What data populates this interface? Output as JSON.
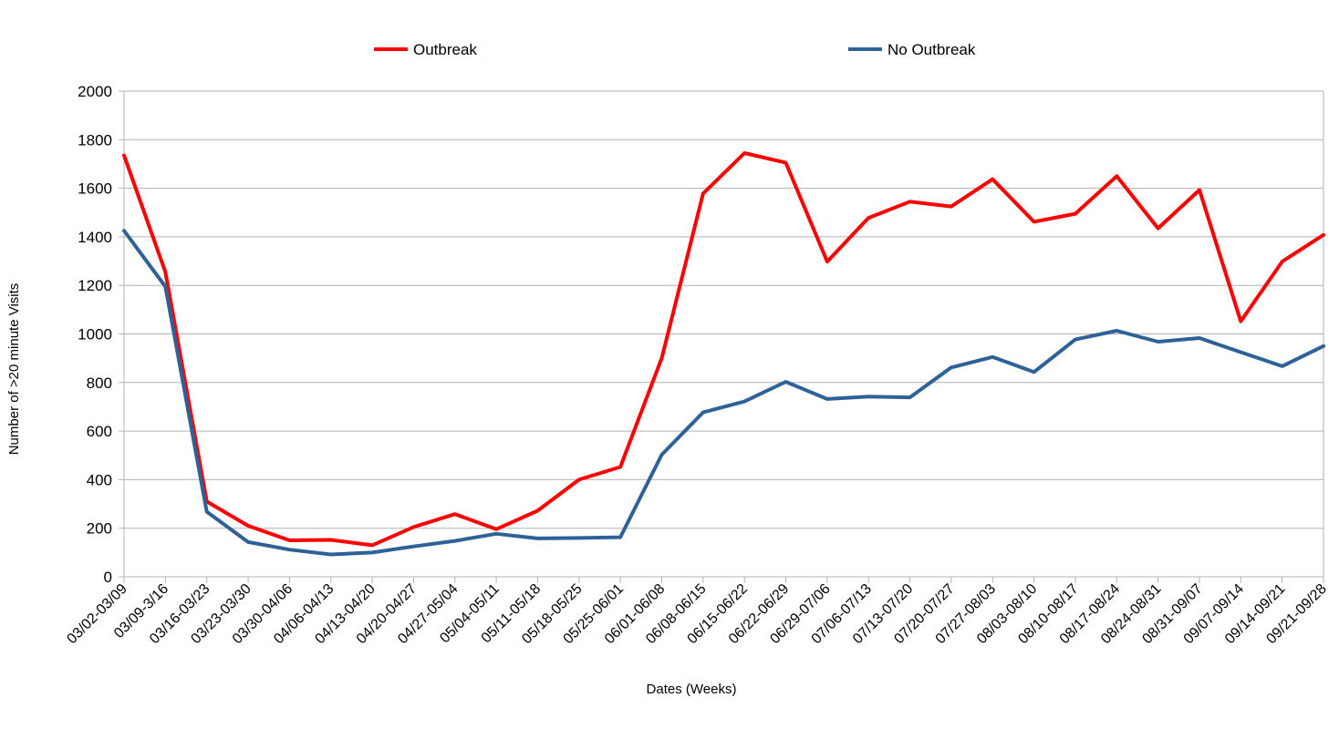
{
  "chart_data": {
    "type": "line",
    "xlabel": "Dates (Weeks)",
    "ylabel": "Number of >20 minute Visits",
    "ylim": [
      0,
      2000
    ],
    "yticks": [
      0,
      200,
      400,
      600,
      800,
      1000,
      1200,
      1400,
      1600,
      1800,
      2000
    ],
    "grid": "horizontal",
    "legend": "top",
    "categories": [
      "03/02-03/09",
      "03/09-3/16",
      "03/16-03/23",
      "03/23-03/30",
      "03/30-04/06",
      "04/06-04/13",
      "04/13-04/20",
      "04/20-04/27",
      "04/27-05/04",
      "05/04-05/11",
      "05/11-05/18",
      "05/18-05/25",
      "05/25-06/01",
      "06/01-06/08",
      "06/08-06/15",
      "06/15-06/22",
      "06/22-06/29",
      "06/29-07/06",
      "07/06-07/13",
      "07/13-07/20",
      "07/20-07/27",
      "07/27-08/03",
      "08/03-08/10",
      "08/10-08/17",
      "08/17-08/24",
      "08/24-08/31",
      "08/31-09/07",
      "09/07-09/14",
      "09/14-09/21",
      "09/21-09/28"
    ],
    "series": [
      {
        "name": "Outbreak",
        "color": "#ff0000",
        "values": [
          1735,
          1255,
          310,
          210,
          150,
          152,
          130,
          205,
          258,
          196,
          272,
          400,
          452,
          900,
          1578,
          1745,
          1705,
          1298,
          1478,
          1545,
          1525,
          1637,
          1462,
          1495,
          1650,
          1435,
          1593,
          1052,
          1298,
          1408
        ]
      },
      {
        "name": "No Outbreak",
        "color": "#2f6199",
        "values": [
          1425,
          1195,
          268,
          143,
          112,
          92,
          100,
          125,
          148,
          177,
          158,
          160,
          163,
          503,
          677,
          722,
          803,
          732,
          742,
          739,
          862,
          905,
          843,
          977,
          1013,
          968,
          983,
          925,
          867,
          950
        ]
      }
    ]
  }
}
